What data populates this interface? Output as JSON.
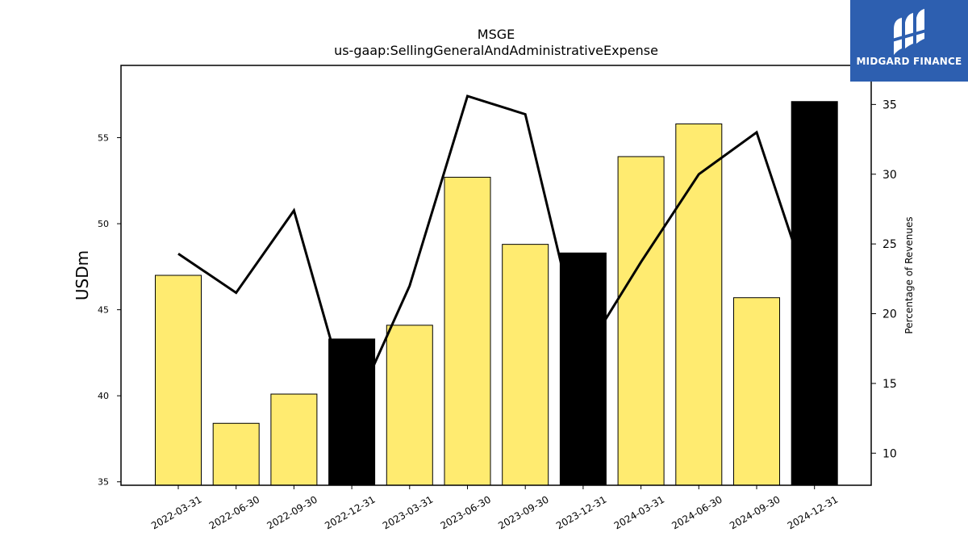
{
  "chart_data": {
    "type": "bar",
    "title": "MSGE",
    "subtitle": "us-gaap:SellingGeneralAndAdministrativeExpense",
    "ylabel": "USDm",
    "y2label": "Percentage of Revenues",
    "categories": [
      "2022-03-31",
      "2022-06-30",
      "2022-09-30",
      "2022-12-31",
      "2023-03-31",
      "2023-06-30",
      "2023-09-30",
      "2023-12-31",
      "2024-03-31",
      "2024-06-30",
      "2024-09-30",
      "2024-12-31"
    ],
    "series": [
      {
        "kind": "bar",
        "axis": "left",
        "values": [
          47.0,
          38.4,
          40.1,
          43.3,
          44.1,
          52.7,
          48.8,
          48.3,
          53.9,
          55.8,
          45.7,
          57.1
        ],
        "colors": [
          "#ffeb70",
          "#ffeb70",
          "#ffeb70",
          "#000000",
          "#ffeb70",
          "#ffeb70",
          "#ffeb70",
          "#000000",
          "#ffeb70",
          "#ffeb70",
          "#ffeb70",
          "#000000"
        ]
      },
      {
        "kind": "line",
        "axis": "right",
        "values": [
          24.3,
          21.5,
          27.4,
          12.8,
          22.0,
          35.6,
          34.3,
          17.0,
          23.7,
          30.0,
          33.0,
          20.5
        ],
        "color": "#000000"
      }
    ],
    "ylim": [
      34.8,
      59.2
    ],
    "y2lim": [
      7.7,
      37.8
    ],
    "yticks": [
      35,
      40,
      45,
      50,
      55
    ],
    "y2ticks": [
      10,
      15,
      20,
      25,
      30,
      35
    ],
    "grid": false
  },
  "logo": {
    "text": "MIDGARD FINANCE",
    "color": "#2d5fb0"
  }
}
